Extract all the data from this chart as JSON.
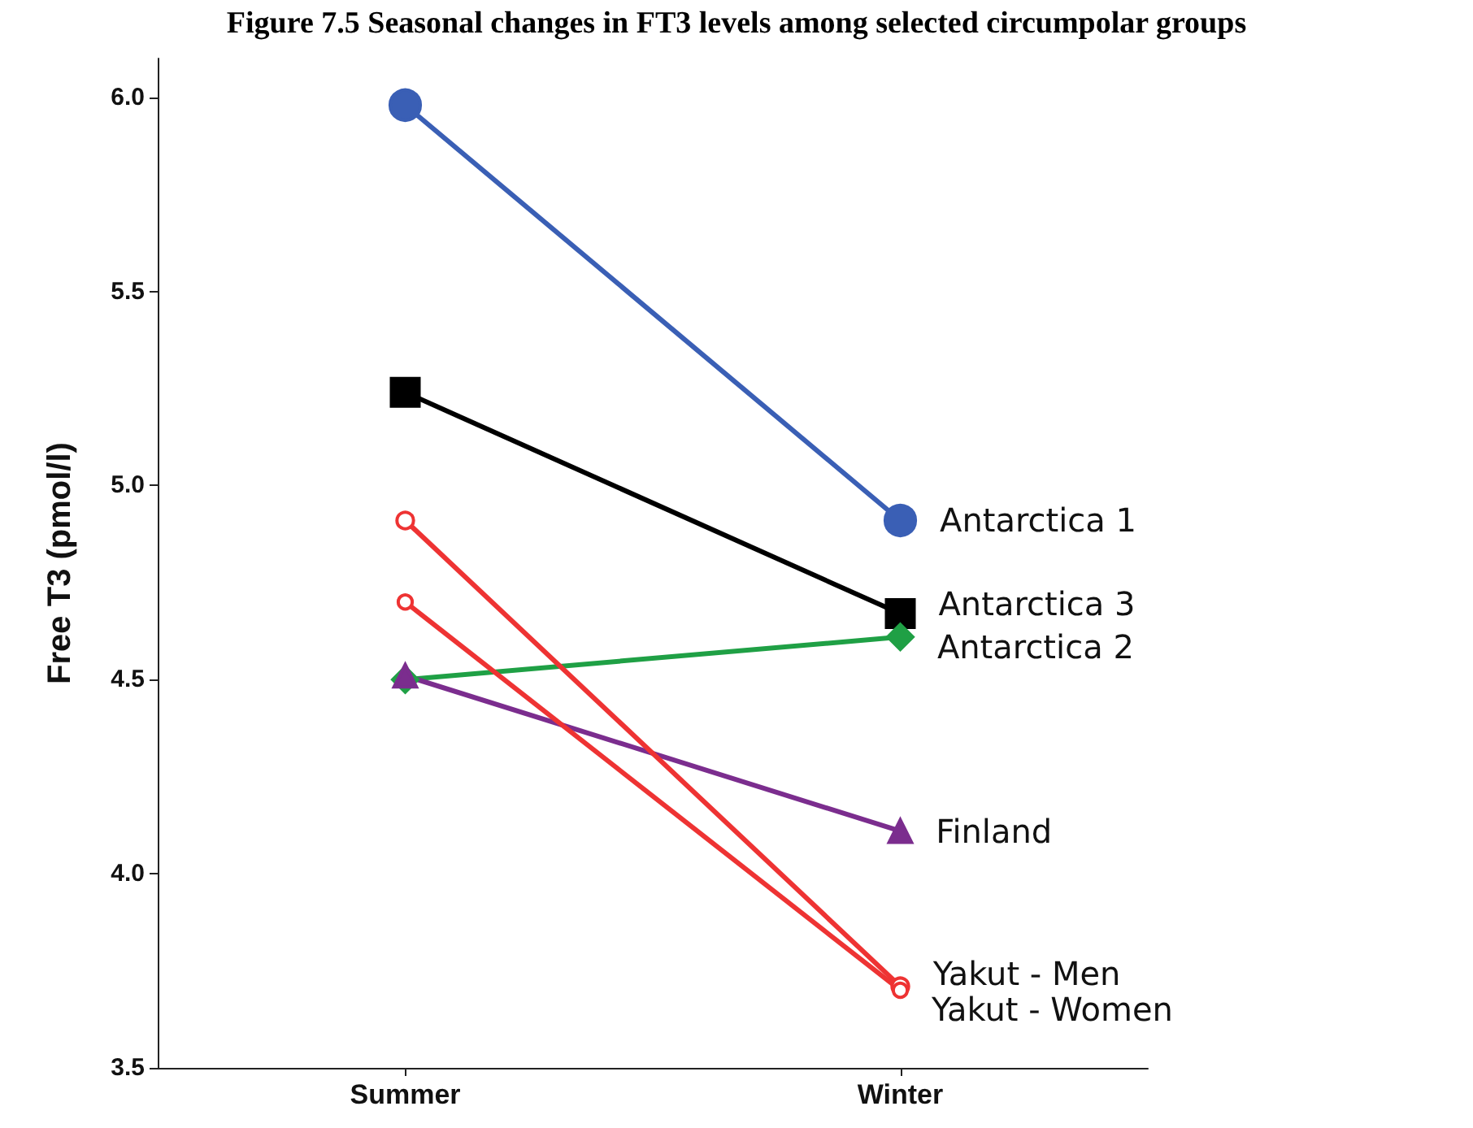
{
  "chart_data": {
    "type": "line",
    "title": "Figure 7.5 Seasonal changes in FT3 levels among selected circumpolar groups",
    "ylabel": "Free T3 (pmol/l)",
    "categories": [
      "Summer",
      "Winter"
    ],
    "series": [
      {
        "name": "Antarctica 1",
        "color": "#3a5fb5",
        "marker": "circle",
        "values": [
          5.98,
          4.91
        ]
      },
      {
        "name": "Antarctica 3",
        "color": "#000000",
        "marker": "square",
        "values": [
          5.24,
          4.67
        ]
      },
      {
        "name": "Antarctica 2",
        "color": "#1fa045",
        "marker": "diamond",
        "values": [
          4.5,
          4.61
        ]
      },
      {
        "name": "Finland",
        "color": "#7b2d8e",
        "marker": "triangle",
        "values": [
          4.51,
          4.11
        ]
      },
      {
        "name": "Yakut - Men",
        "color": "#ee3333",
        "marker": "circle",
        "values": [
          4.91,
          3.71
        ]
      },
      {
        "name": "Yakut - Women",
        "color": "#ee3333",
        "marker": "circle",
        "values": [
          4.7,
          3.7
        ]
      }
    ],
    "ylim": [
      3.5,
      6.1
    ],
    "yticks": [
      3.5,
      {
        "value": 4,
        "label": "4.0"
      },
      4.5,
      {
        "value": 5,
        "label": "5.0"
      },
      5.5,
      {
        "value": 6,
        "label": "6.0"
      }
    ],
    "grid": false,
    "legend": false,
    "line_style": "solid"
  }
}
